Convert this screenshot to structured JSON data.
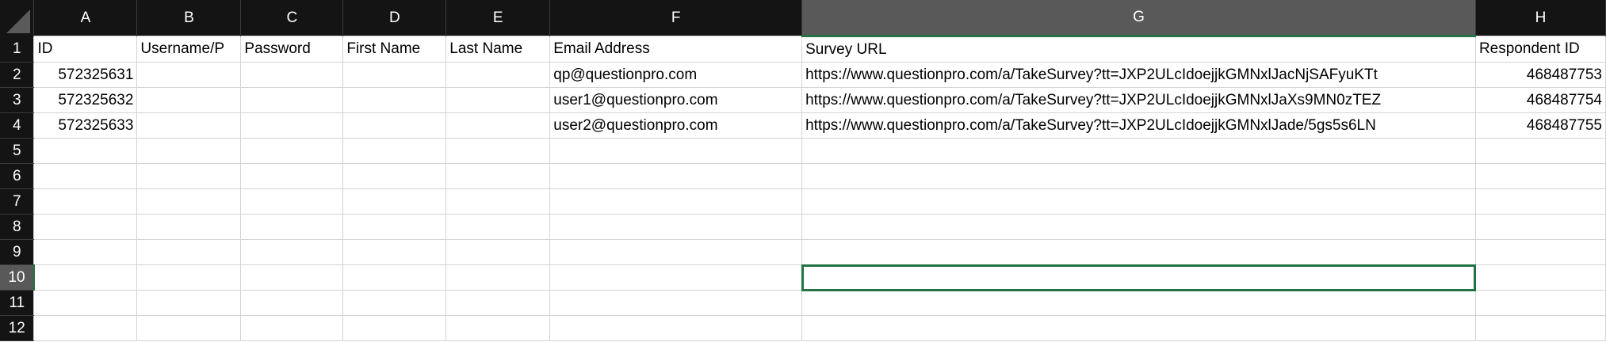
{
  "columns": [
    "A",
    "B",
    "C",
    "D",
    "E",
    "F",
    "G",
    "H"
  ],
  "rows": [
    [
      "ID",
      "Username/P",
      "Password",
      "First Name",
      "Last Name",
      "Email Address",
      "Survey URL",
      "Respondent ID"
    ],
    [
      "572325631",
      "",
      "",
      "",
      "",
      "qp@questionpro.com",
      "https://www.questionpro.com/a/TakeSurvey?tt=JXP2ULcIdoejjkGMNxlJacNjSAFyuKTt",
      "468487753"
    ],
    [
      "572325632",
      "",
      "",
      "",
      "",
      "user1@questionpro.com",
      "https://www.questionpro.com/a/TakeSurvey?tt=JXP2ULcIdoejjkGMNxlJaXs9MN0zTEZ",
      "468487754"
    ],
    [
      "572325633",
      "",
      "",
      "",
      "",
      "user2@questionpro.com",
      "https://www.questionpro.com/a/TakeSurvey?tt=JXP2ULcIdoejjkGMNxlJade/5gs5s6LN",
      "468487755"
    ],
    [
      "",
      "",
      "",
      "",
      "",
      "",
      "",
      ""
    ],
    [
      "",
      "",
      "",
      "",
      "",
      "",
      "",
      ""
    ],
    [
      "",
      "",
      "",
      "",
      "",
      "",
      "",
      ""
    ],
    [
      "",
      "",
      "",
      "",
      "",
      "",
      "",
      ""
    ],
    [
      "",
      "",
      "",
      "",
      "",
      "",
      "",
      ""
    ],
    [
      "",
      "",
      "",
      "",
      "",
      "",
      "",
      ""
    ],
    [
      "",
      "",
      "",
      "",
      "",
      "",
      "",
      ""
    ],
    [
      "",
      "",
      "",
      "",
      "",
      "",
      "",
      ""
    ]
  ],
  "selected_cell": "G10",
  "accent": "#217346"
}
